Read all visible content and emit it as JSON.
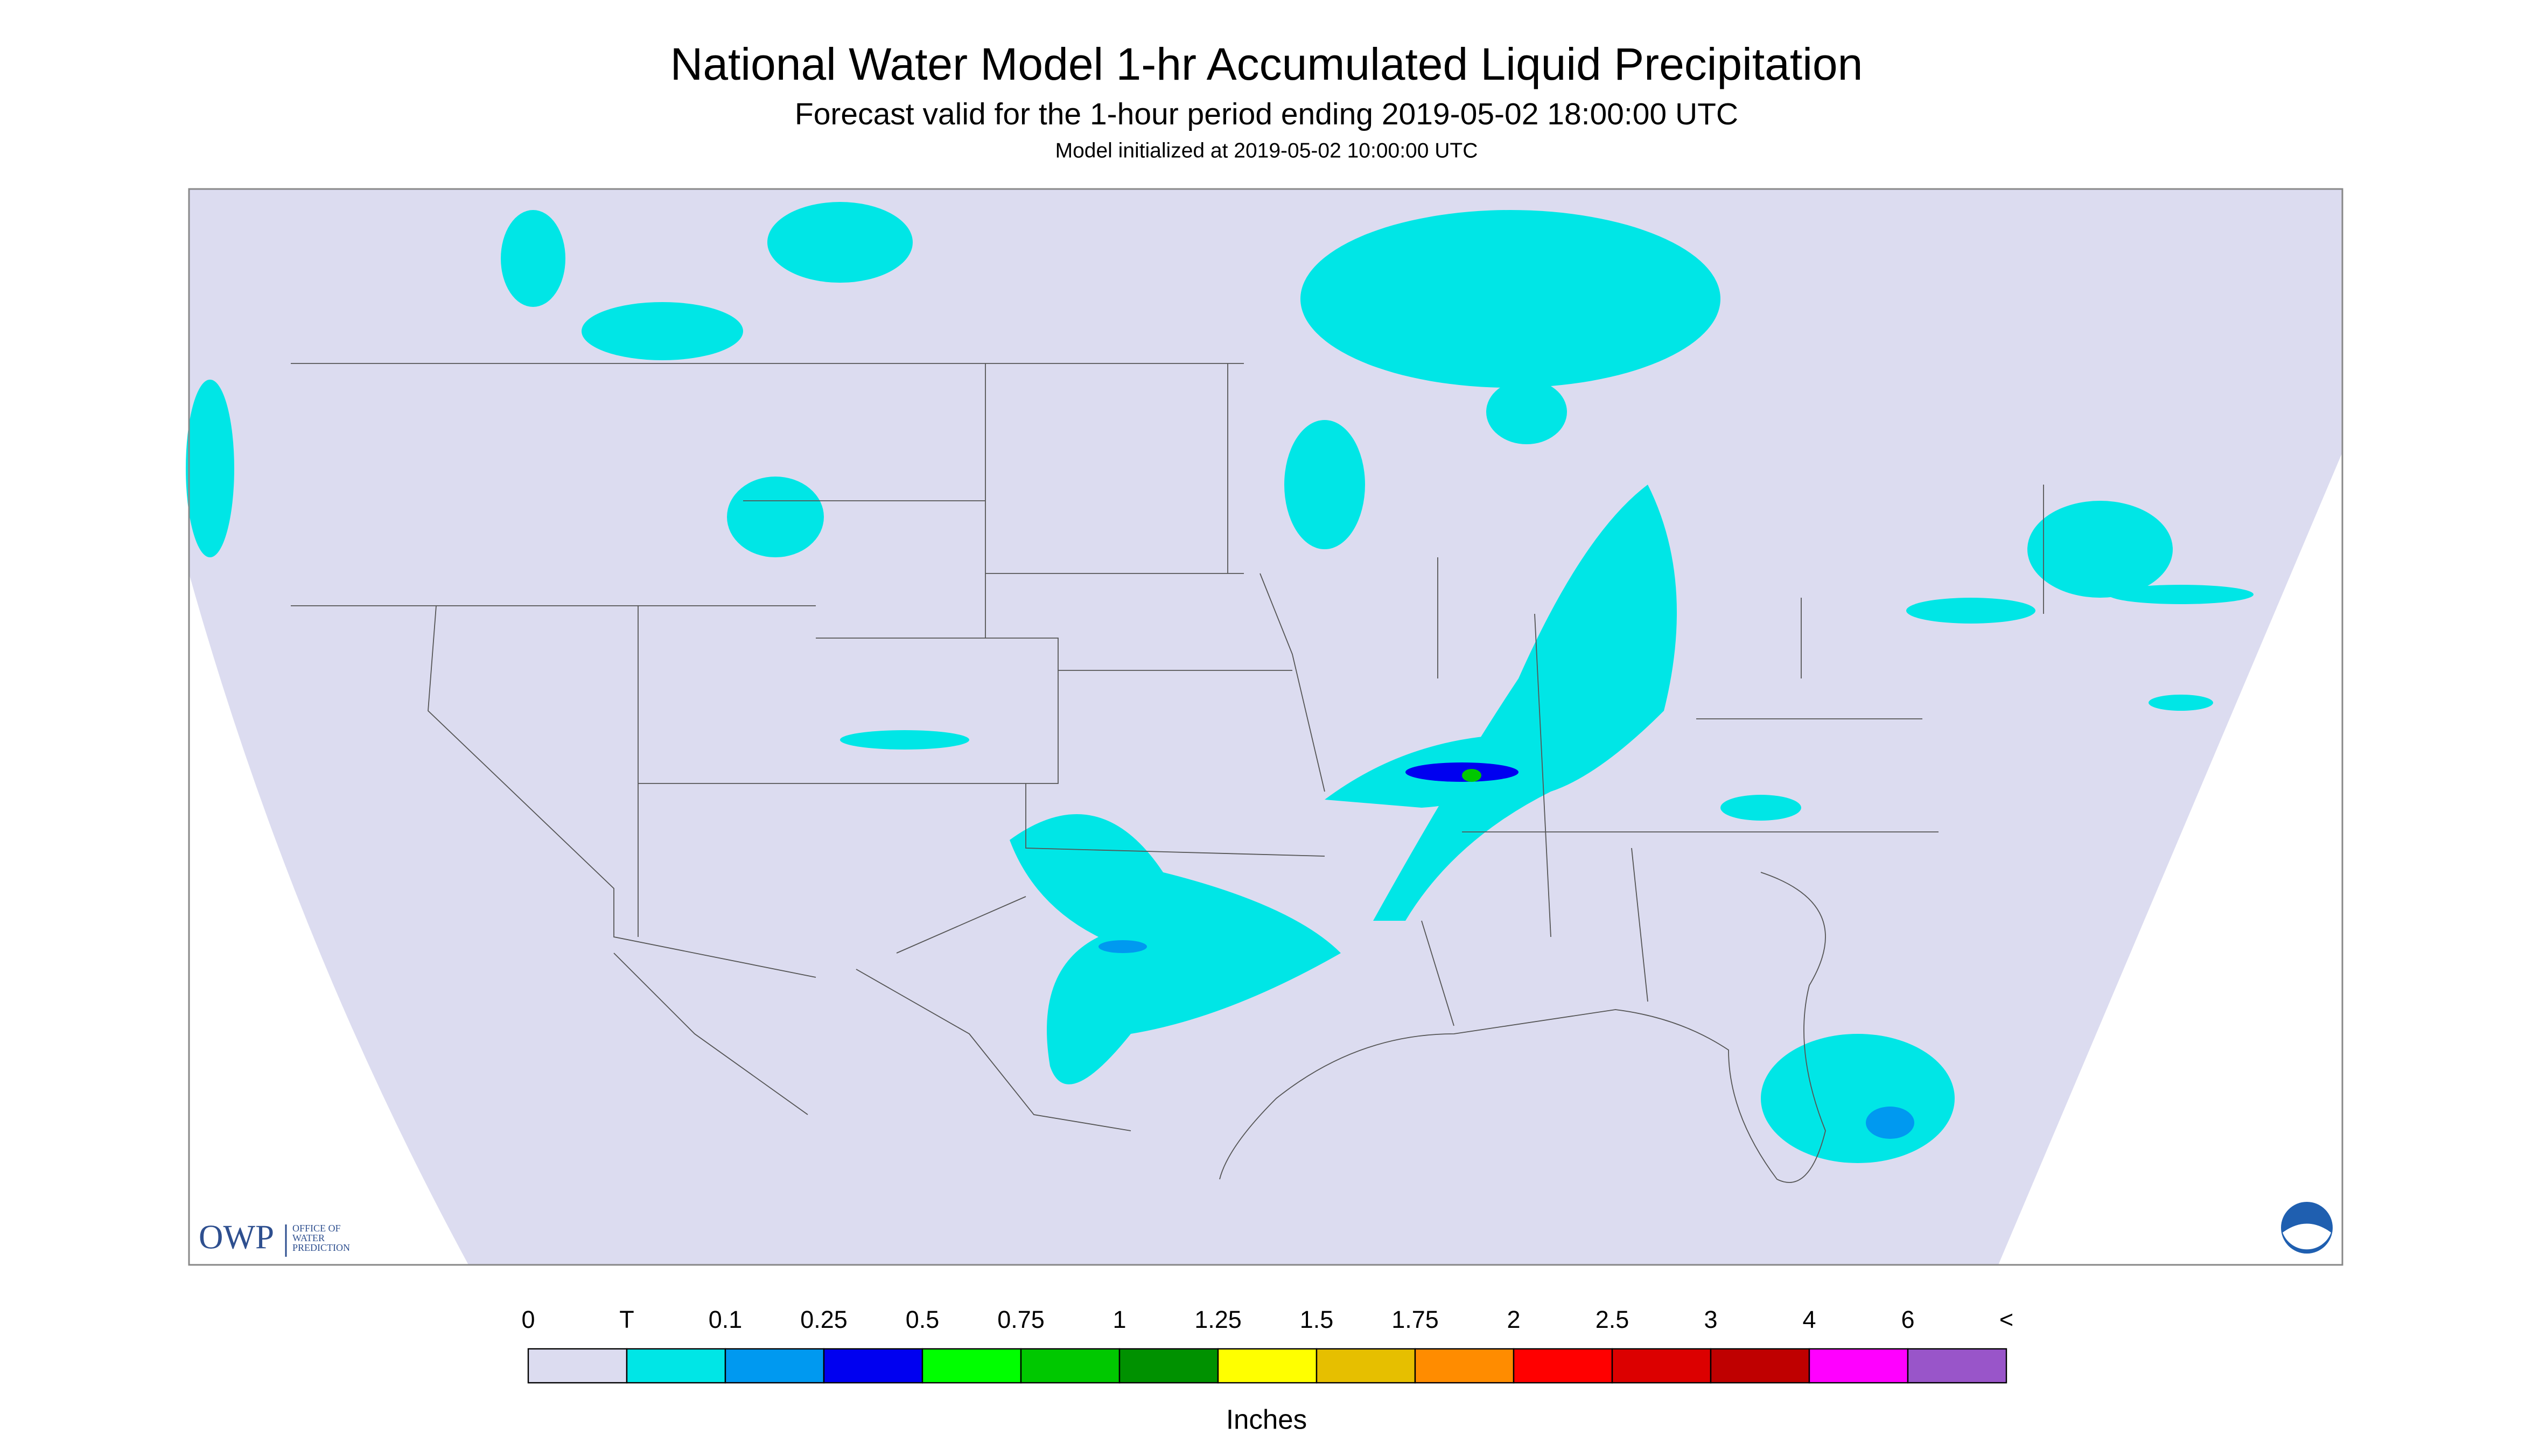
{
  "header": {
    "title": "National Water Model 1-hr Accumulated Liquid Precipitation",
    "subtitle": "Forecast valid for the 1-hour period ending 2019-05-02 18:00:00 UTC",
    "note": "Model initialized at 2019-05-02 10:00:00 UTC"
  },
  "logo": {
    "name": "OWP",
    "lines": [
      "OFFICE OF",
      "WATER",
      "PREDICTION"
    ]
  },
  "legend": {
    "labels": [
      "0",
      "T",
      "0.1",
      "0.25",
      "0.5",
      "0.75",
      "1",
      "1.25",
      "1.5",
      "1.75",
      "2",
      "2.5",
      "3",
      "4",
      "6",
      "<"
    ],
    "colors": [
      "#dcdcf0",
      "#00e6e6",
      "#0099f0",
      "#0000f0",
      "#00ff00",
      "#00c800",
      "#009100",
      "#ffff00",
      "#e6bf00",
      "#ff8c00",
      "#ff0000",
      "#dc0000",
      "#bf0000",
      "#ff00ff",
      "#9955c9"
    ],
    "units": "Inches"
  }
}
